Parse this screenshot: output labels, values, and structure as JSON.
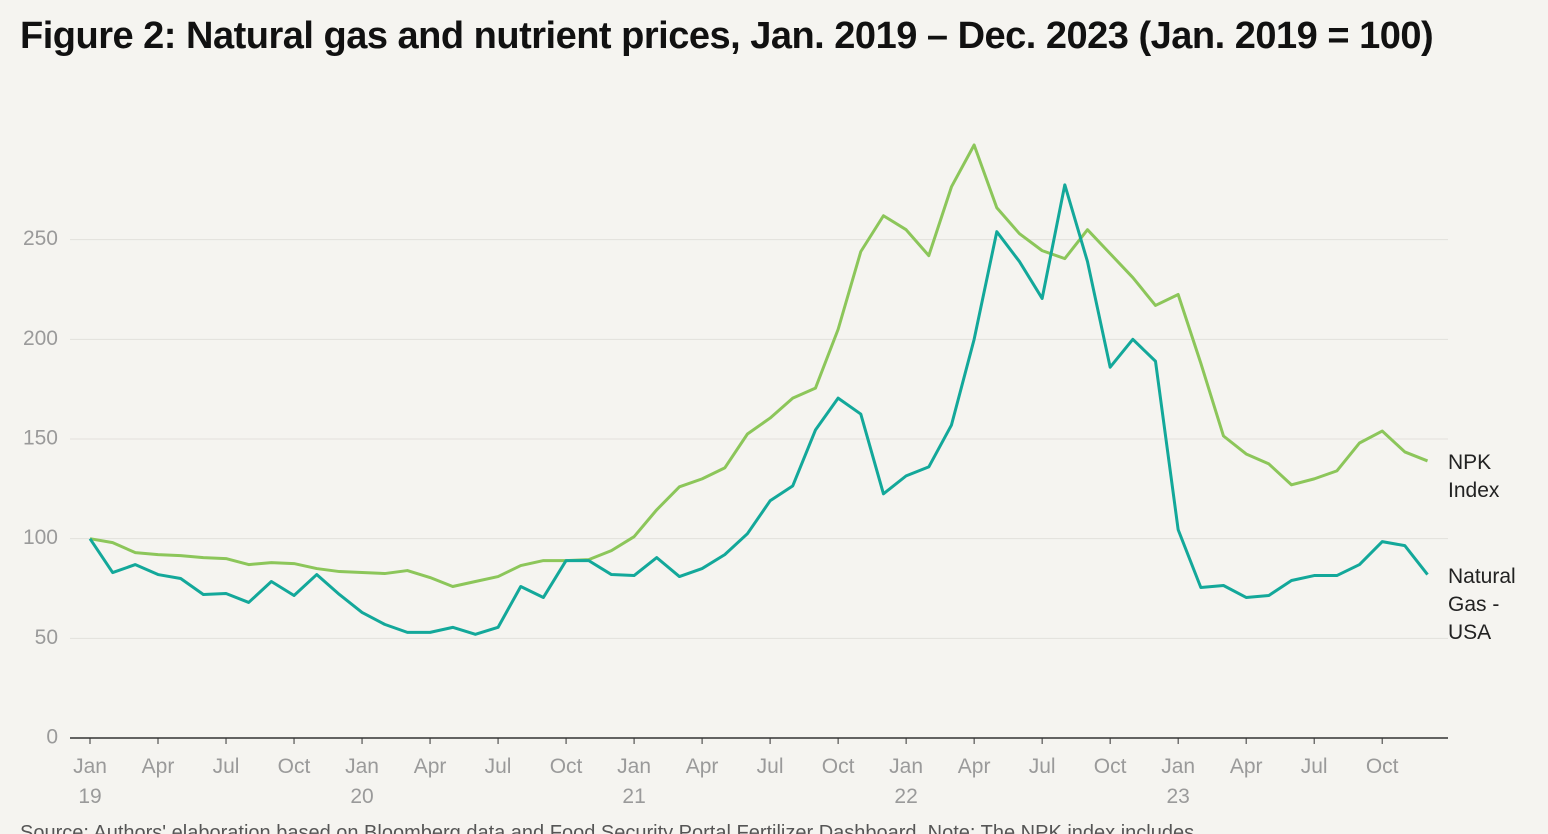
{
  "chart_data": {
    "type": "line",
    "title": "Figure 2: Natural gas and nutrient prices, Jan. 2019 – Dec. 2023 (Jan. 2019 = 100)",
    "source": "Source: Authors' elaboration based on Bloomberg data and Food Security Portal Fertilizer Dashboard. Note: The NPK index includes",
    "categories": [
      "Jan\n19",
      null,
      null,
      "Apr",
      null,
      null,
      "Jul",
      null,
      null,
      "Oct",
      null,
      null,
      "Jan\n20",
      null,
      null,
      "Apr",
      null,
      null,
      "Jul",
      null,
      null,
      "Oct",
      null,
      null,
      "Jan\n21",
      null,
      null,
      "Apr",
      null,
      null,
      "Jul",
      null,
      null,
      "Oct",
      null,
      null,
      "Jan\n22",
      null,
      null,
      "Apr",
      null,
      null,
      "Jul",
      null,
      null,
      "Oct",
      null,
      null,
      "Jan\n23",
      null,
      null,
      "Apr",
      null,
      null,
      "Jul",
      null,
      null,
      "Oct",
      null,
      null
    ],
    "ylim": [
      0,
      300
    ],
    "yticks": [
      0,
      50,
      100,
      150,
      200,
      250
    ],
    "grid": true,
    "series": [
      {
        "name": "NPK Index",
        "color": "#8cc65a",
        "values": [
          100,
          98,
          93,
          92,
          91.5,
          90.5,
          90,
          87,
          88,
          87.5,
          85,
          83.5,
          83,
          82.5,
          84,
          80.5,
          76,
          78.5,
          81,
          86.5,
          89,
          89,
          89.5,
          94,
          101,
          114.5,
          126,
          130,
          135.5,
          152.5,
          160.5,
          170.5,
          175.5,
          205,
          244,
          262,
          255,
          242,
          276.5,
          297.5,
          266,
          253,
          244.5,
          240.5,
          255,
          243,
          231,
          217,
          222.5,
          188,
          151.5,
          142.5,
          137.5,
          127,
          130,
          134,
          148,
          154,
          143.5,
          139
        ]
      },
      {
        "name": "Natural Gas - USA",
        "color": "#13a89a",
        "values": [
          100,
          83,
          87,
          82,
          80,
          72,
          72.5,
          68,
          78.5,
          71.5,
          82,
          72,
          63,
          57,
          53,
          53,
          55.5,
          52,
          55.5,
          76,
          70.5,
          89,
          89,
          82,
          81.5,
          90.5,
          81,
          85,
          92,
          102.5,
          119,
          126.5,
          154.5,
          170.5,
          162.5,
          122.5,
          131.5,
          136,
          157,
          200,
          254,
          239,
          220.5,
          277.5,
          239,
          186,
          200,
          189,
          104.5,
          75.5,
          76.5,
          70.5,
          71.5,
          79,
          81.5,
          81.5,
          87,
          98.5,
          96.5,
          82
        ]
      }
    ]
  }
}
